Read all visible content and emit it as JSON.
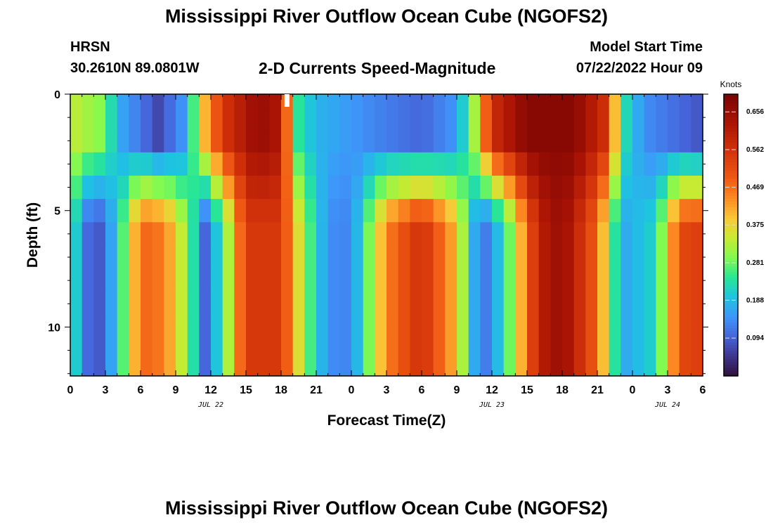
{
  "header": {
    "title": "Mississippi River Outflow Ocean Cube (NGOFS2)",
    "station": "HRSN",
    "coords": "30.2610N  89.0801W",
    "variable": "2-D Currents Speed-Magnitude",
    "start_label": "Model Start Time",
    "start_date": "07/22/2022 Hour 09"
  },
  "footer": {
    "title": "Mississippi River Outflow Ocean Cube (NGOFS2)"
  },
  "chart_data": {
    "type": "heatmap",
    "xlabel": "Forecast Time(Z)",
    "ylabel": "Depth (ft)",
    "x_ticks": [
      "0",
      "3",
      "6",
      "9",
      "12",
      "15",
      "18",
      "21",
      "0",
      "3",
      "6",
      "9",
      "12",
      "15",
      "18",
      "21",
      "0",
      "3",
      "6"
    ],
    "date_labels": [
      {
        "label": "JUL 22",
        "hours": 12
      },
      {
        "label": "JUL 23",
        "hours": 36
      },
      {
        "label": "JUL 24",
        "hours": 51
      }
    ],
    "x_range_hours": [
      0,
      54
    ],
    "y_ticks": [
      "0",
      "5",
      "10"
    ],
    "y_range_ft": [
      0,
      12.1
    ],
    "colorbar": {
      "unit": "Knots",
      "ticks": [
        "0.094",
        "0.188",
        "0.281",
        "0.375",
        "0.469",
        "0.562",
        "0.656"
      ],
      "range": [
        0.0,
        0.7
      ]
    },
    "layers_ft": [
      0.25,
      1.1,
      2.0,
      3.0,
      4.0,
      5.0,
      6.0,
      7.0,
      8.0,
      9.0,
      10.0,
      11.0,
      11.75
    ],
    "upper_layer_anchors": [
      [
        0,
        0.34
      ],
      [
        2.5,
        0.3
      ],
      [
        4.5,
        0.16
      ],
      [
        7.5,
        0.07
      ],
      [
        10,
        0.16
      ],
      [
        11,
        0.36
      ],
      [
        13,
        0.55
      ],
      [
        16,
        0.66
      ],
      [
        18,
        0.62
      ],
      [
        19.3,
        0.25
      ],
      [
        21,
        0.18
      ],
      [
        26,
        0.13
      ],
      [
        30,
        0.1
      ],
      [
        33,
        0.15
      ],
      [
        34.5,
        0.32
      ],
      [
        36,
        0.57
      ],
      [
        39,
        0.68
      ],
      [
        43,
        0.68
      ],
      [
        46,
        0.55
      ],
      [
        47,
        0.25
      ],
      [
        49,
        0.14
      ],
      [
        54,
        0.08
      ]
    ],
    "lower_layer_anchors": [
      [
        0,
        0.26
      ],
      [
        2,
        0.05
      ],
      [
        4,
        0.2
      ],
      [
        6,
        0.48
      ],
      [
        8,
        0.46
      ],
      [
        10,
        0.3
      ],
      [
        11.5,
        0.1
      ],
      [
        13,
        0.25
      ],
      [
        15,
        0.55
      ],
      [
        18,
        0.55
      ],
      [
        20,
        0.3
      ],
      [
        22,
        0.14
      ],
      [
        24,
        0.13
      ],
      [
        27,
        0.45
      ],
      [
        30,
        0.57
      ],
      [
        33,
        0.4
      ],
      [
        35,
        0.09
      ],
      [
        37,
        0.22
      ],
      [
        40,
        0.6
      ],
      [
        42,
        0.66
      ],
      [
        45,
        0.48
      ],
      [
        47,
        0.16
      ],
      [
        50,
        0.22
      ],
      [
        52,
        0.52
      ],
      [
        54,
        0.54
      ]
    ]
  }
}
